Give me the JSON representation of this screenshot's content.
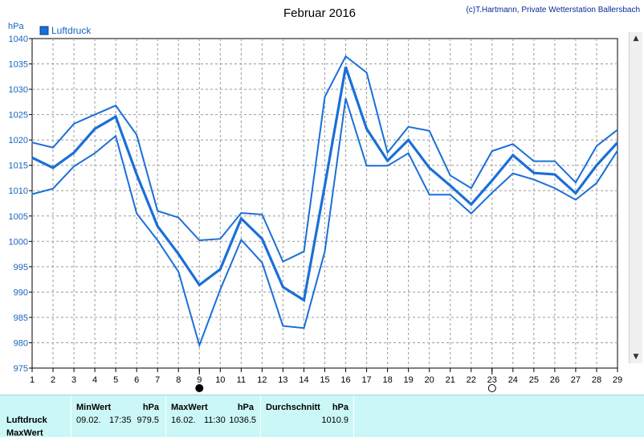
{
  "credit": "(c)T.Hartmann, Private Wetterstation Ballersbach",
  "chart_data": {
    "type": "line",
    "title": "Februar 2016",
    "ylabel": "hPa",
    "ylim": [
      975,
      1040
    ],
    "yticks": [
      975,
      980,
      985,
      990,
      995,
      1000,
      1005,
      1010,
      1015,
      1020,
      1025,
      1030,
      1035,
      1040
    ],
    "x": [
      1,
      2,
      3,
      4,
      5,
      6,
      7,
      8,
      9,
      10,
      11,
      12,
      13,
      14,
      15,
      16,
      17,
      18,
      19,
      20,
      21,
      22,
      23,
      24,
      25,
      26,
      27,
      28,
      29
    ],
    "grid": true,
    "legend": {
      "label": "Luftdruck",
      "position": "top-left",
      "color": "#1a6fd8"
    },
    "series": [
      {
        "role": "max",
        "values": [
          1019.5,
          1018.5,
          1023.2,
          1025.0,
          1026.8,
          1021.0,
          1006.0,
          1004.7,
          1000.2,
          1000.5,
          1005.6,
          1005.3,
          996.0,
          998.0,
          1028.5,
          1036.5,
          1033.3,
          1017.5,
          1022.6,
          1021.8,
          1013.0,
          1010.5,
          1017.8,
          1019.2,
          1015.8,
          1015.8,
          1011.6,
          1018.8,
          1022.0
        ]
      },
      {
        "role": "avg",
        "values": [
          1016.5,
          1014.5,
          1017.5,
          1022.2,
          1024.6,
          1013.2,
          1003.0,
          997.5,
          991.4,
          994.5,
          1004.5,
          1000.5,
          991.0,
          988.4,
          1011.0,
          1034.4,
          1022.2,
          1015.9,
          1020.0,
          1014.5,
          1011.0,
          1007.3,
          1012.0,
          1017.0,
          1013.5,
          1013.2,
          1009.5,
          1015.0,
          1019.5
        ]
      },
      {
        "role": "min",
        "values": [
          1009.3,
          1010.4,
          1014.8,
          1017.4,
          1020.8,
          1005.5,
          1000.2,
          994.0,
          979.5,
          990.5,
          1000.3,
          995.8,
          983.3,
          982.9,
          998.0,
          1028.2,
          1014.9,
          1014.9,
          1017.4,
          1009.2,
          1009.2,
          1005.5,
          1009.6,
          1013.4,
          1012.2,
          1010.5,
          1008.2,
          1011.5,
          1017.9
        ]
      }
    ],
    "markers": [
      {
        "x": 9,
        "symbol": "filled-circle"
      },
      {
        "x": 23,
        "symbol": "open-circle"
      }
    ]
  },
  "stats": {
    "row_labels": [
      "Luftdruck",
      "MaxWert"
    ],
    "min": {
      "header": "MinWert",
      "unit": "hPa",
      "date": "09.02.",
      "time": "17:35",
      "value": "979.5"
    },
    "max": {
      "header": "MaxWert",
      "unit": "hPa",
      "date": "16.02.",
      "time": "11:30",
      "value": "1036.5"
    },
    "avg": {
      "header": "Durchschnitt",
      "unit": "hPa",
      "value": "1010.9"
    }
  },
  "scrollbar": {
    "up_icon": "triangle-up-icon",
    "down_icon": "triangle-down-icon"
  }
}
